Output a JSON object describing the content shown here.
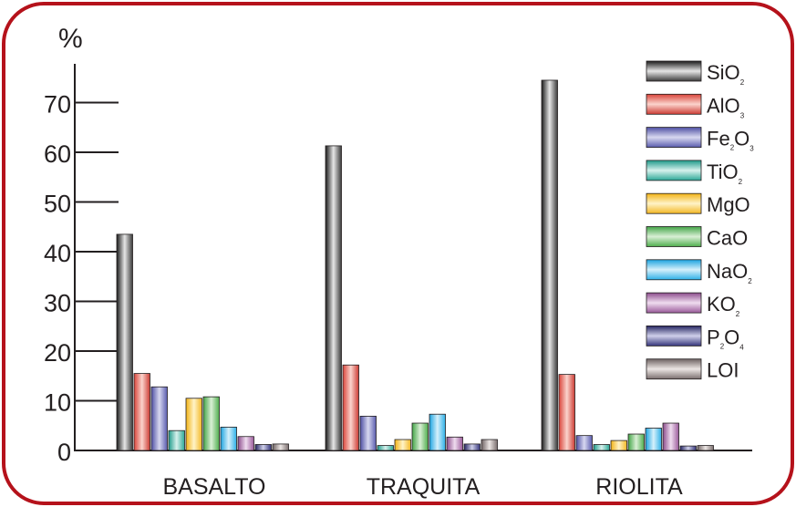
{
  "colors": {
    "frame": "#b5121b",
    "axis": "#231f20"
  },
  "chart_data": {
    "type": "bar",
    "ylabel": "%",
    "ylim": [
      0,
      80
    ],
    "yticks": [
      0,
      10,
      20,
      30,
      40,
      50,
      60,
      70
    ],
    "categories": [
      "BASALTO",
      "TRAQUITA",
      "RIOLITA"
    ],
    "legend_position": "right",
    "series": [
      {
        "name": "SiO",
        "sub": "2",
        "sub2": "",
        "colors": [
          "#1a1a1a",
          "#e6e6e6",
          "#3a3a3a"
        ],
        "values": [
          43.5,
          61.3,
          74.5
        ]
      },
      {
        "name": "AlO",
        "sub": "3",
        "sub2": "",
        "colors": [
          "#d9443a",
          "#fbd3cc",
          "#cc3b33"
        ],
        "values": [
          15.5,
          17.2,
          15.3
        ]
      },
      {
        "name": "FeO",
        "sub": "2",
        "sub2": "3",
        "colors": [
          "#4e4fa3",
          "#d7d8f0",
          "#5a5cae"
        ],
        "values": [
          12.8,
          6.9,
          3.0
        ]
      },
      {
        "name": "TiO",
        "sub": "2",
        "sub2": "",
        "colors": [
          "#1e9a8a",
          "#d6f1ec",
          "#2aa796"
        ],
        "values": [
          4.0,
          1.0,
          1.2
        ]
      },
      {
        "name": "MgO",
        "sub": "",
        "sub2": "",
        "colors": [
          "#f2b316",
          "#fff3c7",
          "#f3b825"
        ],
        "values": [
          10.5,
          2.2,
          2.0
        ]
      },
      {
        "name": "CaO",
        "sub": "",
        "sub2": "",
        "colors": [
          "#43a547",
          "#d9efd5",
          "#4fae4d"
        ],
        "values": [
          10.8,
          5.5,
          3.3
        ]
      },
      {
        "name": "NaO",
        "sub": "2",
        "sub2": "",
        "colors": [
          "#1ba3e0",
          "#d5f0fb",
          "#2db0e8"
        ],
        "values": [
          4.7,
          7.3,
          4.5
        ]
      },
      {
        "name": "KO",
        "sub": "2",
        "sub2": "",
        "colors": [
          "#8c4c8c",
          "#efdcef",
          "#9a5a9a"
        ],
        "values": [
          2.8,
          2.7,
          5.5
        ]
      },
      {
        "name": "PO",
        "sub": "2",
        "sub2": "4",
        "colors": [
          "#262662",
          "#cfd0ea",
          "#34347a"
        ],
        "values": [
          1.2,
          1.3,
          0.9
        ]
      },
      {
        "name": "LOI",
        "sub": "",
        "sub2": "",
        "colors": [
          "#6e6262",
          "#ece6e4",
          "#7a6e6e"
        ],
        "values": [
          1.3,
          2.2,
          1.0
        ]
      }
    ]
  }
}
